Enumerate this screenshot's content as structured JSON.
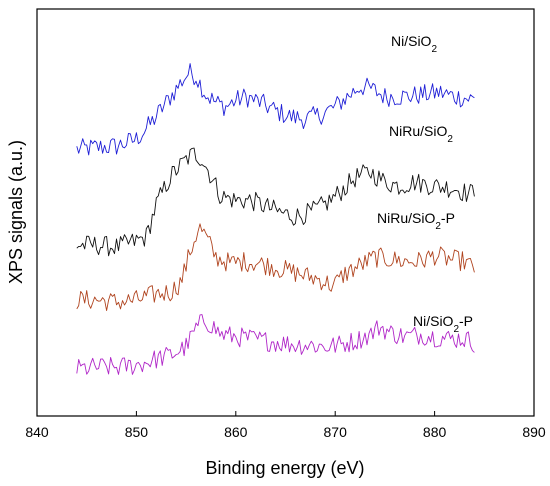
{
  "chart_data": {
    "type": "line",
    "title": "",
    "xlabel": "Binding energy (eV)",
    "ylabel": "XPS signals (a.u.)",
    "xlim": [
      840,
      890
    ],
    "ylim": [
      0,
      1
    ],
    "x_ticks": [
      "840",
      "850",
      "860",
      "870",
      "880",
      "890"
    ],
    "y_ticks_shown": false,
    "grid": false,
    "legend": "labels placed beside each curve",
    "series": [
      {
        "name": "Ni/SiO2",
        "label_main": "Ni/SiO",
        "label_sub": "2",
        "label_suffix": "",
        "color": "#1f1fd6",
        "points": [
          [
            844.0,
            0.655
          ],
          [
            846.0,
            0.66
          ],
          [
            848.0,
            0.663
          ],
          [
            850.0,
            0.68
          ],
          [
            851.5,
            0.72
          ],
          [
            853.0,
            0.77
          ],
          [
            854.5,
            0.82
          ],
          [
            855.3,
            0.845
          ],
          [
            856.0,
            0.835
          ],
          [
            857.0,
            0.79
          ],
          [
            858.0,
            0.77
          ],
          [
            859.0,
            0.76
          ],
          [
            860.0,
            0.775
          ],
          [
            861.0,
            0.785
          ],
          [
            862.5,
            0.77
          ],
          [
            864.0,
            0.75
          ],
          [
            865.5,
            0.735
          ],
          [
            867.0,
            0.73
          ],
          [
            868.5,
            0.74
          ],
          [
            870.0,
            0.76
          ],
          [
            871.5,
            0.79
          ],
          [
            872.5,
            0.81
          ],
          [
            873.5,
            0.805
          ],
          [
            875.0,
            0.785
          ],
          [
            877.0,
            0.785
          ],
          [
            879.0,
            0.79
          ],
          [
            880.5,
            0.795
          ],
          [
            882.0,
            0.785
          ],
          [
            884.0,
            0.778
          ]
        ]
      },
      {
        "name": "NiRu/SiO2",
        "label_main": "NiRu/SiO",
        "label_sub": "2",
        "label_suffix": "",
        "color": "#111111",
        "points": [
          [
            844.0,
            0.42
          ],
          [
            846.0,
            0.42
          ],
          [
            848.0,
            0.415
          ],
          [
            850.0,
            0.43
          ],
          [
            851.0,
            0.44
          ],
          [
            852.0,
            0.52
          ],
          [
            853.5,
            0.59
          ],
          [
            855.0,
            0.63
          ],
          [
            855.8,
            0.645
          ],
          [
            856.5,
            0.635
          ],
          [
            857.5,
            0.59
          ],
          [
            858.5,
            0.54
          ],
          [
            860.0,
            0.53
          ],
          [
            861.5,
            0.53
          ],
          [
            863.0,
            0.515
          ],
          [
            864.5,
            0.5
          ],
          [
            866.0,
            0.49
          ],
          [
            867.5,
            0.5
          ],
          [
            869.0,
            0.52
          ],
          [
            870.5,
            0.55
          ],
          [
            872.0,
            0.585
          ],
          [
            873.5,
            0.6
          ],
          [
            875.0,
            0.575
          ],
          [
            876.5,
            0.565
          ],
          [
            878.0,
            0.575
          ],
          [
            880.0,
            0.565
          ],
          [
            882.0,
            0.56
          ],
          [
            883.5,
            0.545
          ],
          [
            884.0,
            0.555
          ]
        ]
      },
      {
        "name": "NiRu/SiO2-P",
        "label_main": "NiRu/SiO",
        "label_sub": "2",
        "label_suffix": "-P",
        "color": "#b0441f",
        "points": [
          [
            844.0,
            0.285
          ],
          [
            846.0,
            0.285
          ],
          [
            848.0,
            0.28
          ],
          [
            850.0,
            0.285
          ],
          [
            852.0,
            0.3
          ],
          [
            853.5,
            0.305
          ],
          [
            854.5,
            0.33
          ],
          [
            855.5,
            0.41
          ],
          [
            856.3,
            0.465
          ],
          [
            857.0,
            0.44
          ],
          [
            858.0,
            0.39
          ],
          [
            859.5,
            0.375
          ],
          [
            861.0,
            0.38
          ],
          [
            862.5,
            0.375
          ],
          [
            864.0,
            0.365
          ],
          [
            865.5,
            0.355
          ],
          [
            867.0,
            0.345
          ],
          [
            868.5,
            0.335
          ],
          [
            869.8,
            0.32
          ],
          [
            871.0,
            0.35
          ],
          [
            872.5,
            0.37
          ],
          [
            874.0,
            0.39
          ],
          [
            875.5,
            0.385
          ],
          [
            877.0,
            0.38
          ],
          [
            878.5,
            0.38
          ],
          [
            880.0,
            0.395
          ],
          [
            881.5,
            0.385
          ],
          [
            883.0,
            0.38
          ],
          [
            884.0,
            0.36
          ]
        ]
      },
      {
        "name": "Ni/SiO2-P",
        "label_main": "Ni/SiO",
        "label_sub": "2",
        "label_suffix": "-P",
        "color": "#b026c8",
        "points": [
          [
            844.0,
            0.115
          ],
          [
            846.0,
            0.12
          ],
          [
            848.0,
            0.12
          ],
          [
            850.0,
            0.125
          ],
          [
            852.0,
            0.14
          ],
          [
            853.5,
            0.15
          ],
          [
            855.0,
            0.17
          ],
          [
            856.0,
            0.215
          ],
          [
            856.8,
            0.235
          ],
          [
            857.5,
            0.225
          ],
          [
            858.5,
            0.2
          ],
          [
            860.0,
            0.195
          ],
          [
            861.5,
            0.19
          ],
          [
            863.0,
            0.185
          ],
          [
            864.5,
            0.18
          ],
          [
            866.0,
            0.175
          ],
          [
            867.5,
            0.175
          ],
          [
            869.0,
            0.17
          ],
          [
            870.5,
            0.175
          ],
          [
            872.0,
            0.185
          ],
          [
            873.5,
            0.2
          ],
          [
            874.5,
            0.22
          ],
          [
            875.5,
            0.205
          ],
          [
            877.0,
            0.195
          ],
          [
            878.5,
            0.2
          ],
          [
            880.0,
            0.195
          ],
          [
            881.5,
            0.19
          ],
          [
            883.0,
            0.19
          ],
          [
            884.0,
            0.18
          ]
        ]
      }
    ]
  }
}
